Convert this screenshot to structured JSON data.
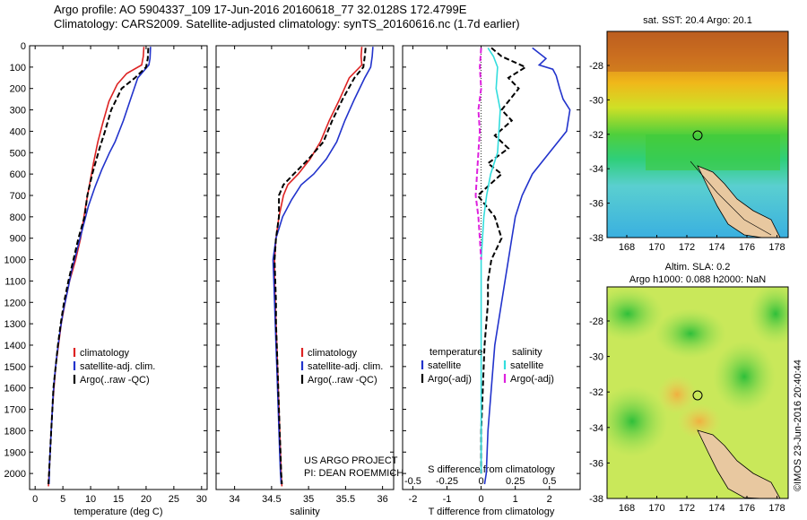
{
  "header": {
    "line1": "Argo profile: AO 5904337_109 17-Jun-2016 20160618_77 32.0128S 172.4799E",
    "line2": "Climatology: CARS2009. Satellite-adjusted climatology: synTS_20160616.nc (1.7d earlier)"
  },
  "side_label": "©IMOS 23-Jun-2016 20:40:44",
  "project": {
    "line1": "US ARGO PROJECT",
    "line2": "PI: DEAN ROEMMICH"
  },
  "colors": {
    "climatology": "#dd2222",
    "satellite": "#2233cc",
    "argo": "#000000",
    "salinity_satellite": "#33dddd",
    "salinity_argo": "#dd22dd"
  },
  "chart_data": [
    {
      "type": "line",
      "xlabel": "temperature (deg C)",
      "ylabel": "",
      "xlim": [
        -1,
        31
      ],
      "ylim": [
        2075,
        0
      ],
      "xticks": [
        0,
        5,
        10,
        15,
        20,
        25,
        30
      ],
      "yticks": [
        0,
        100,
        200,
        300,
        400,
        500,
        600,
        700,
        800,
        900,
        1000,
        1100,
        1200,
        1300,
        1400,
        1500,
        1600,
        1700,
        1800,
        1900,
        2000
      ],
      "legend": {
        "placement": "bottom-center",
        "entries": [
          "climatology",
          "satellite-adj. clim.",
          "Argo(..raw -QC)"
        ]
      },
      "series": [
        {
          "name": "climatology",
          "color": "#dd2222",
          "points": [
            [
              19.6,
              5
            ],
            [
              19.5,
              50
            ],
            [
              19.2,
              90
            ],
            [
              16.5,
              130
            ],
            [
              14.8,
              180
            ],
            [
              13.3,
              260
            ],
            [
              12.2,
              360
            ],
            [
              11.3,
              450
            ],
            [
              10.5,
              550
            ],
            [
              9.8,
              650
            ],
            [
              9.1,
              750
            ],
            [
              8.2,
              900
            ],
            [
              7.3,
              1000
            ],
            [
              6.2,
              1100
            ],
            [
              5.4,
              1200
            ],
            [
              4.7,
              1300
            ],
            [
              4.2,
              1400
            ],
            [
              3.7,
              1500
            ],
            [
              3.4,
              1600
            ],
            [
              3.1,
              1700
            ],
            [
              2.9,
              1800
            ],
            [
              2.7,
              1900
            ],
            [
              2.5,
              2000
            ],
            [
              2.4,
              2060
            ]
          ]
        },
        {
          "name": "satellite-adj. clim.",
          "color": "#2233cc",
          "points": [
            [
              20.8,
              5
            ],
            [
              20.7,
              60
            ],
            [
              20.5,
              90
            ],
            [
              18.5,
              150
            ],
            [
              17.2,
              250
            ],
            [
              15.9,
              350
            ],
            [
              14.4,
              450
            ],
            [
              13.4,
              500
            ],
            [
              12.0,
              580
            ],
            [
              10.8,
              660
            ],
            [
              9.6,
              750
            ],
            [
              8.6,
              850
            ],
            [
              7.6,
              950
            ],
            [
              6.6,
              1050
            ],
            [
              5.8,
              1150
            ],
            [
              5.0,
              1250
            ],
            [
              4.4,
              1350
            ],
            [
              3.9,
              1450
            ],
            [
              3.5,
              1550
            ],
            [
              3.2,
              1650
            ],
            [
              3.0,
              1750
            ],
            [
              2.8,
              1850
            ],
            [
              2.6,
              1950
            ],
            [
              2.5,
              2050
            ]
          ]
        },
        {
          "name": "Argo(..raw -QC)",
          "color": "#000000",
          "points": [
            [
              20.4,
              10
            ],
            [
              20.3,
              60
            ],
            [
              20.0,
              100
            ],
            [
              18.0,
              150
            ],
            [
              15.6,
              200
            ],
            [
              13.7,
              300
            ],
            [
              12.6,
              400
            ],
            [
              11.6,
              480
            ],
            [
              10.3,
              600
            ],
            [
              9.4,
              700
            ],
            [
              8.9,
              800
            ],
            [
              7.8,
              900
            ],
            [
              6.9,
              1000
            ],
            [
              6.0,
              1100
            ],
            [
              5.2,
              1200
            ],
            [
              4.6,
              1300
            ],
            [
              4.1,
              1400
            ],
            [
              3.7,
              1500
            ],
            [
              3.3,
              1600
            ],
            [
              3.1,
              1700
            ],
            [
              2.9,
              1800
            ],
            [
              2.7,
              1900
            ],
            [
              2.5,
              2000
            ],
            [
              2.4,
              2050
            ]
          ]
        }
      ]
    },
    {
      "type": "line",
      "xlabel": "salinity",
      "ylabel": "",
      "xlim": [
        33.75,
        36.15
      ],
      "ylim": [
        2075,
        0
      ],
      "xticks": [
        34,
        34.5,
        35,
        35.5,
        36
      ],
      "yticks": [
        0,
        100,
        200,
        300,
        400,
        500,
        600,
        700,
        800,
        900,
        1000,
        1100,
        1200,
        1300,
        1400,
        1500,
        1600,
        1700,
        1800,
        1900,
        2000
      ],
      "legend": {
        "placement": "bottom-right",
        "entries": [
          "climatology",
          "satellite-adj. clim.",
          "Argo(..raw -QC)"
        ]
      },
      "series": [
        {
          "name": "climatology",
          "color": "#dd2222",
          "points": [
            [
              35.72,
              5
            ],
            [
              35.71,
              50
            ],
            [
              35.72,
              90
            ],
            [
              35.55,
              150
            ],
            [
              35.42,
              250
            ],
            [
              35.28,
              350
            ],
            [
              35.16,
              450
            ],
            [
              35.02,
              530
            ],
            [
              34.86,
              600
            ],
            [
              34.72,
              650
            ],
            [
              34.66,
              700
            ],
            [
              34.6,
              800
            ],
            [
              34.56,
              900
            ],
            [
              34.54,
              1000
            ],
            [
              34.54,
              1100
            ],
            [
              34.55,
              1200
            ],
            [
              34.56,
              1300
            ],
            [
              34.57,
              1400
            ],
            [
              34.58,
              1500
            ],
            [
              34.59,
              1600
            ],
            [
              34.6,
              1700
            ],
            [
              34.61,
              1800
            ],
            [
              34.62,
              1900
            ],
            [
              34.63,
              2000
            ],
            [
              34.64,
              2060
            ]
          ]
        },
        {
          "name": "satellite-adj. clim.",
          "color": "#2233cc",
          "points": [
            [
              35.87,
              5
            ],
            [
              35.86,
              50
            ],
            [
              35.84,
              100
            ],
            [
              35.76,
              150
            ],
            [
              35.62,
              250
            ],
            [
              35.49,
              350
            ],
            [
              35.38,
              450
            ],
            [
              35.24,
              530
            ],
            [
              35.07,
              600
            ],
            [
              34.9,
              650
            ],
            [
              34.77,
              720
            ],
            [
              34.65,
              800
            ],
            [
              34.56,
              900
            ],
            [
              34.52,
              1000
            ],
            [
              34.53,
              1100
            ],
            [
              34.54,
              1200
            ],
            [
              34.55,
              1300
            ],
            [
              34.56,
              1400
            ],
            [
              34.57,
              1500
            ],
            [
              34.58,
              1600
            ],
            [
              34.59,
              1700
            ],
            [
              34.6,
              1800
            ],
            [
              34.61,
              1900
            ],
            [
              34.62,
              2000
            ],
            [
              34.63,
              2050
            ]
          ]
        },
        {
          "name": "Argo(..raw -QC)",
          "color": "#000000",
          "points": [
            [
              35.77,
              10
            ],
            [
              35.76,
              50
            ],
            [
              35.74,
              100
            ],
            [
              35.62,
              150
            ],
            [
              35.46,
              250
            ],
            [
              35.32,
              350
            ],
            [
              35.2,
              450
            ],
            [
              35.0,
              530
            ],
            [
              34.8,
              600
            ],
            [
              34.66,
              650
            ],
            [
              34.6,
              700
            ],
            [
              34.6,
              800
            ],
            [
              34.56,
              900
            ],
            [
              34.54,
              1000
            ],
            [
              34.55,
              1100
            ],
            [
              34.56,
              1200
            ],
            [
              34.56,
              1300
            ],
            [
              34.57,
              1400
            ],
            [
              34.58,
              1500
            ],
            [
              34.59,
              1600
            ],
            [
              34.6,
              1700
            ],
            [
              34.61,
              1800
            ],
            [
              34.62,
              1900
            ],
            [
              34.63,
              2000
            ],
            [
              34.64,
              2050
            ]
          ]
        }
      ]
    },
    {
      "type": "line",
      "xlabel": "T difference from climatology",
      "xlabel_top": "S difference from climatology",
      "ylabel": "",
      "xlim": [
        -2.3,
        2.9
      ],
      "xlim_top": [
        -0.575,
        0.725
      ],
      "ylim": [
        2075,
        0
      ],
      "xticks": [
        -2,
        -1,
        0,
        1,
        2
      ],
      "xticks_top": [
        -0.5,
        -0.25,
        0,
        0.25,
        0.5
      ],
      "legend": {
        "placement": "bottom",
        "groups": [
          {
            "title": "temperature",
            "entries": [
              "satellite",
              "Argo(-adj)"
            ]
          },
          {
            "title": "salinity",
            "entries": [
              "satellite",
              "Argo(-adj)"
            ]
          }
        ]
      },
      "series": [
        {
          "name": "satellite",
          "group": "temperature",
          "color": "#2233cc",
          "points": [
            [
              1.5,
              10
            ],
            [
              1.9,
              60
            ],
            [
              1.7,
              90
            ],
            [
              2.1,
              110
            ],
            [
              2.2,
              140
            ],
            [
              2.3,
              200
            ],
            [
              2.4,
              250
            ],
            [
              2.6,
              300
            ],
            [
              2.5,
              400
            ],
            [
              2.0,
              500
            ],
            [
              1.5,
              600
            ],
            [
              1.2,
              700
            ],
            [
              1.0,
              800
            ],
            [
              0.9,
              900
            ],
            [
              0.8,
              1000
            ],
            [
              0.7,
              1100
            ],
            [
              0.6,
              1200
            ],
            [
              0.5,
              1300
            ],
            [
              0.4,
              1400
            ],
            [
              0.3,
              1600
            ],
            [
              0.2,
              1800
            ],
            [
              0.15,
              2000
            ],
            [
              0.1,
              2050
            ]
          ]
        },
        {
          "name": "Argo(-adj)",
          "group": "temperature",
          "color": "#000000",
          "points": [
            [
              0.3,
              10
            ],
            [
              0.6,
              50
            ],
            [
              1.3,
              100
            ],
            [
              0.8,
              150
            ],
            [
              1.1,
              200
            ],
            [
              0.6,
              300
            ],
            [
              0.9,
              350
            ],
            [
              0.4,
              420
            ],
            [
              0.8,
              480
            ],
            [
              0.2,
              550
            ],
            [
              0.6,
              600
            ],
            [
              -0.1,
              700
            ],
            [
              0.4,
              800
            ],
            [
              0.6,
              900
            ],
            [
              0.3,
              1000
            ],
            [
              0.2,
              1100
            ],
            [
              0.2,
              1200
            ],
            [
              0.1,
              1400
            ],
            [
              0.05,
              1600
            ],
            [
              0.0,
              1800
            ],
            [
              0.0,
              2000
            ]
          ]
        },
        {
          "name": "satellite",
          "group": "salinity",
          "color": "#33dddd",
          "points": [
            [
              0.05,
              10
            ],
            [
              0.09,
              50
            ],
            [
              0.12,
              100
            ],
            [
              0.11,
              200
            ],
            [
              0.14,
              300
            ],
            [
              0.13,
              400
            ],
            [
              0.12,
              500
            ],
            [
              0.07,
              600
            ],
            [
              0.04,
              700
            ],
            [
              0.02,
              800
            ],
            [
              0.01,
              900
            ],
            [
              0.0,
              1000
            ],
            [
              0.0,
              1200
            ],
            [
              0.0,
              1500
            ],
            [
              0.0,
              1800
            ],
            [
              0.0,
              2000
            ]
          ]
        },
        {
          "name": "Argo(-adj)",
          "group": "salinity",
          "color": "#dd22dd",
          "points": [
            [
              0.0,
              10
            ],
            [
              -0.01,
              100
            ],
            [
              0.0,
              200
            ],
            [
              -0.02,
              300
            ],
            [
              -0.01,
              400
            ],
            [
              -0.02,
              500
            ],
            [
              -0.03,
              600
            ],
            [
              -0.04,
              700
            ],
            [
              -0.02,
              800
            ],
            [
              -0.01,
              900
            ],
            [
              0.0,
              1000
            ]
          ]
        }
      ]
    }
  ],
  "maps": [
    {
      "title": "sat. SST: 20.4  Argo: 20.1",
      "xticks": [
        "168",
        "170",
        "172",
        "174",
        "176",
        "178"
      ],
      "yticks": [
        "-28",
        "-30",
        "-32",
        "-34",
        "-36",
        "-38"
      ]
    },
    {
      "title_line1": "Altim. SLA: 0.2",
      "title_line2": "Argo h1000: 0.088 h2000: NaN",
      "xticks": [
        "168",
        "170",
        "172",
        "174",
        "176",
        "178"
      ],
      "yticks": [
        "-28",
        "-30",
        "-32",
        "-34",
        "-36",
        "-38"
      ]
    }
  ]
}
